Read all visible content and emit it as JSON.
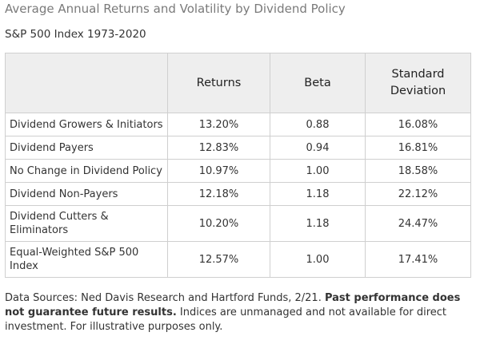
{
  "title": "Average Annual Returns and Volatility by Dividend Policy",
  "subtitle": "S&P 500 Index 1973-2020",
  "chart_data": {
    "type": "table",
    "columns": [
      "",
      "Returns",
      "Beta",
      "Standard Deviation"
    ],
    "rows": [
      {
        "label": "Dividend Growers & Initiators",
        "returns": "13.20%",
        "beta": "0.88",
        "std_dev": "16.08%"
      },
      {
        "label": "Dividend Payers",
        "returns": "12.83%",
        "beta": "0.94",
        "std_dev": "16.81%"
      },
      {
        "label": "No Change in Dividend Policy",
        "returns": "10.97%",
        "beta": "1.00",
        "std_dev": "18.58%"
      },
      {
        "label": "Dividend Non-Payers",
        "returns": "12.18%",
        "beta": "1.18",
        "std_dev": "22.12%"
      },
      {
        "label": "Dividend Cutters & Eliminators",
        "returns": "10.20%",
        "beta": "1.18",
        "std_dev": "24.47%"
      },
      {
        "label": "Equal-Weighted S&P 500 Index",
        "returns": "12.57%",
        "beta": "1.00",
        "std_dev": "17.41%"
      }
    ]
  },
  "footer": {
    "sources": "Data Sources: Ned Davis Research and Hartford Funds, 2/21.",
    "disclaimer_bold": "Past performance does not guarantee future results.",
    "disclaimer": "Indices are unmanaged and not available for direct investment. For illustrative purposes only."
  }
}
